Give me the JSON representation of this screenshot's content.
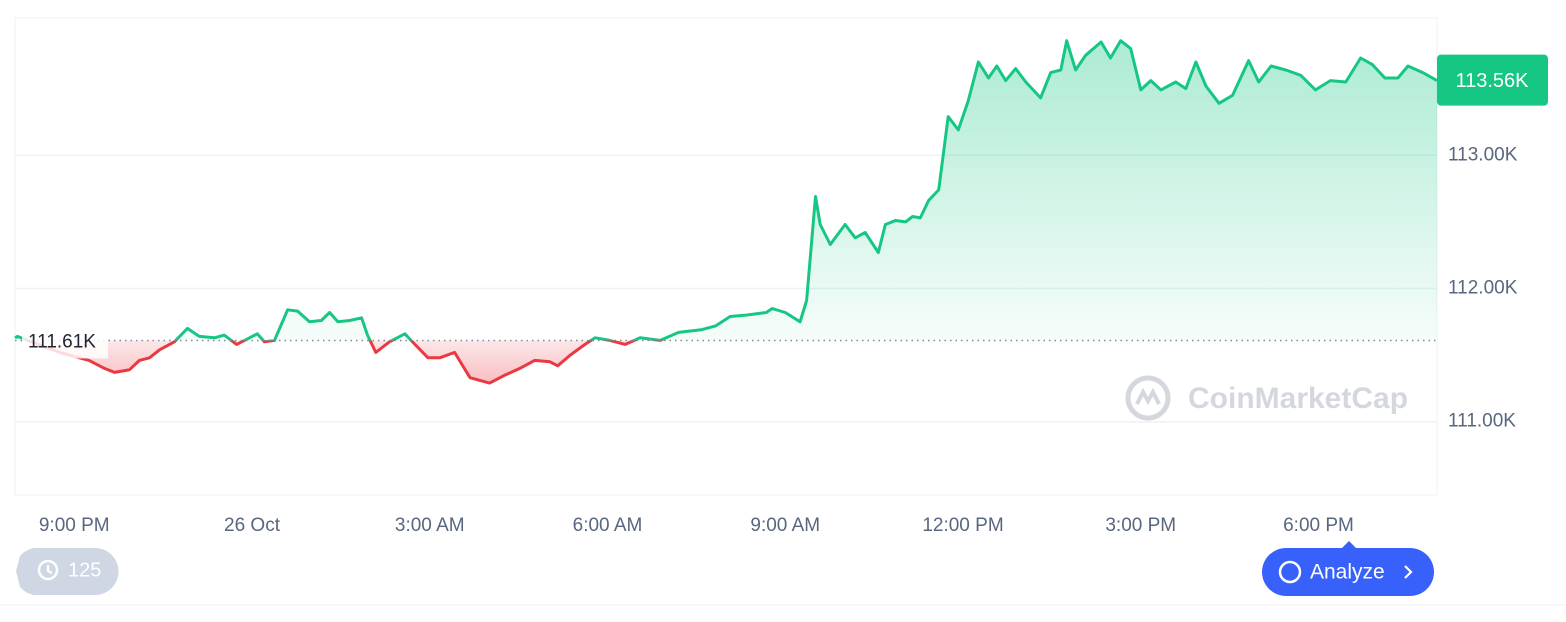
{
  "chart_data": {
    "type": "line",
    "x": [
      20.0,
      20.04,
      20.75,
      21.25,
      21.51,
      21.68,
      21.93,
      22.1,
      22.27,
      22.44,
      22.69,
      22.91,
      23.11,
      23.37,
      23.53,
      23.74,
      23.96,
      24.09,
      24.21,
      24.38,
      24.6,
      24.77,
      24.97,
      25.17,
      25.31,
      25.45,
      25.65,
      25.85,
      25.95,
      26.09,
      26.32,
      26.58,
      26.75,
      26.97,
      27.17,
      27.42,
      27.68,
      28.01,
      28.27,
      28.52,
      28.77,
      29.03,
      29.16,
      29.37,
      29.62,
      29.79,
      30.04,
      30.3,
      30.55,
      30.89,
      31.2,
      31.58,
      31.83,
      32.07,
      32.34,
      32.68,
      32.78,
      33.0,
      33.25,
      33.36,
      33.51,
      33.59,
      33.76,
      34.01,
      34.18,
      34.35,
      34.57,
      34.69,
      34.86,
      35.03,
      35.15,
      35.28,
      35.42,
      35.59,
      35.75,
      35.92,
      36.09,
      36.26,
      36.43,
      36.57,
      36.72,
      36.89,
      37.06,
      37.31,
      37.48,
      37.65,
      37.75,
      37.9,
      38.07,
      38.33,
      38.49,
      38.66,
      38.83,
      39.0,
      39.17,
      39.34,
      39.59,
      39.76,
      39.93,
      40.1,
      40.32,
      40.55,
      40.82,
      40.99,
      41.2,
      41.45,
      41.7,
      41.95,
      42.2,
      42.46,
      42.71,
      42.91,
      43.12,
      43.34,
      43.51,
      43.76,
      44.0
    ],
    "values": [
      111630,
      111640,
      111520,
      111460,
      111400,
      111370,
      111390,
      111460,
      111480,
      111540,
      111600,
      111700,
      111640,
      111630,
      111650,
      111580,
      111630,
      111660,
      111600,
      111610,
      111840,
      111830,
      111750,
      111760,
      111820,
      111750,
      111760,
      111780,
      111650,
      111520,
      111600,
      111660,
      111580,
      111480,
      111480,
      111520,
      111330,
      111290,
      111350,
      111400,
      111460,
      111450,
      111420,
      111500,
      111580,
      111630,
      111610,
      111580,
      111630,
      111610,
      111670,
      111690,
      111720,
      111790,
      111800,
      111820,
      111850,
      111820,
      111750,
      111910,
      112690,
      112480,
      112330,
      112480,
      112380,
      112420,
      112270,
      112480,
      112510,
      112500,
      112540,
      112530,
      112660,
      112740,
      113290,
      113190,
      113410,
      113700,
      113580,
      113670,
      113560,
      113650,
      113550,
      113430,
      113620,
      113640,
      113860,
      113640,
      113750,
      113850,
      113730,
      113860,
      113800,
      113490,
      113560,
      113490,
      113550,
      113500,
      113700,
      113520,
      113390,
      113450,
      113710,
      113550,
      113670,
      113640,
      113600,
      113490,
      113560,
      113550,
      113730,
      113680,
      113580,
      113580,
      113670,
      113620,
      113560
    ],
    "color": "#16c784",
    "down_color": "#ea3943",
    "baseline": {
      "value": 111610,
      "label": "111.61K"
    },
    "current_price": {
      "value": 113560,
      "label": "113.56K"
    },
    "xlim": [
      20,
      44
    ],
    "xticks": [
      {
        "value": 21,
        "label": "9:00 PM"
      },
      {
        "value": 24,
        "label": "26 Oct"
      },
      {
        "value": 27,
        "label": "3:00 AM"
      },
      {
        "value": 30,
        "label": "6:00 AM"
      },
      {
        "value": 33,
        "label": "9:00 AM"
      },
      {
        "value": 36,
        "label": "12:00 PM"
      },
      {
        "value": 39,
        "label": "3:00 PM"
      },
      {
        "value": 42,
        "label": "6:00 PM"
      }
    ],
    "ylim": [
      110450,
      114030
    ],
    "yticks": [
      {
        "value": 111000,
        "label": "111.00K"
      },
      {
        "value": 112000,
        "label": "112.00K"
      },
      {
        "value": 113000,
        "label": "113.00K"
      }
    ],
    "grid": true
  },
  "ui": {
    "history_count": 125,
    "analyze_button": "Analyze",
    "watermark": "CoinMarketCap"
  }
}
